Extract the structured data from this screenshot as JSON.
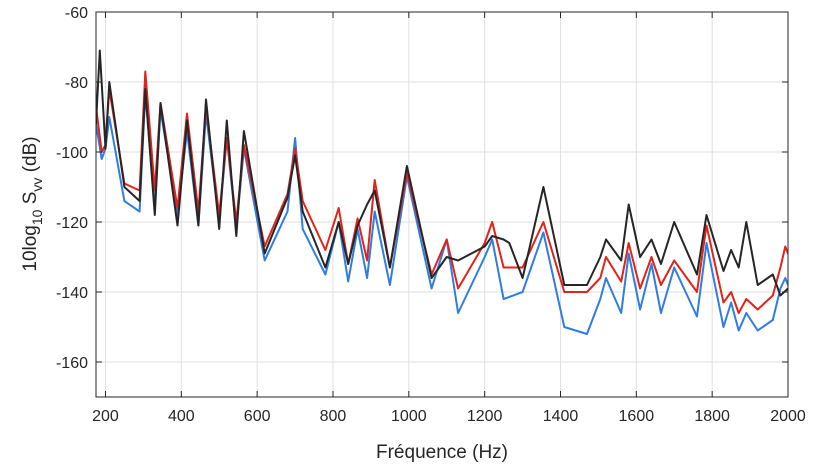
{
  "chart_data": {
    "type": "line",
    "xlabel": "Fréquence (Hz)",
    "ylabel_main": "10log",
    "ylabel_sub": "10",
    "ylabel_rest": " S",
    "ylabel_sub2": "vv",
    "ylabel_unit": " (dB)",
    "xlim": [
      175,
      2000
    ],
    "ylim": [
      -170,
      -60
    ],
    "xticks": [
      200,
      400,
      600,
      800,
      1000,
      1200,
      1400,
      1600,
      1800,
      2000
    ],
    "xtick_labels": [
      "200",
      "400",
      "600",
      "800",
      "1000",
      "1200",
      "1400",
      "1600",
      "1800",
      "2000"
    ],
    "yticks": [
      -160,
      -140,
      -120,
      -100,
      -80,
      -60
    ],
    "ytick_labels": [
      "-160",
      "-140",
      "-120",
      "-100",
      "-80",
      "-60"
    ],
    "grid": true,
    "series": [
      {
        "color": "#2f7de1",
        "x": [
          175,
          190,
          200,
          210,
          250,
          290,
          305,
          330,
          345,
          390,
          415,
          445,
          465,
          500,
          520,
          545,
          565,
          620,
          680,
          700,
          720,
          780,
          815,
          840,
          865,
          890,
          910,
          950,
          995,
          1060,
          1100,
          1130,
          1200,
          1220,
          1250,
          1300,
          1355,
          1410,
          1470,
          1505,
          1520,
          1560,
          1580,
          1610,
          1640,
          1665,
          1700,
          1760,
          1785,
          1830,
          1850,
          1870,
          1890,
          1920,
          1960,
          1980,
          1993,
          2000
        ],
        "y": [
          -92,
          -102,
          -99,
          -90,
          -114,
          -117,
          -83,
          -116,
          -88,
          -118,
          -94,
          -121,
          -89,
          -120,
          -96,
          -122,
          -99,
          -131,
          -117,
          -96,
          -122,
          -135,
          -120,
          -137,
          -122,
          -136,
          -117,
          -138,
          -107,
          -139,
          -125,
          -146,
          -130,
          -125,
          -142,
          -140,
          -123,
          -150,
          -152,
          -142,
          -136,
          -146,
          -129,
          -145,
          -132,
          -146,
          -133,
          -147,
          -126,
          -150,
          -143,
          -151,
          -146,
          -151,
          -148,
          -139,
          -136,
          -138
        ]
      },
      {
        "color": "#e2231a",
        "x": [
          175,
          190,
          200,
          210,
          250,
          290,
          305,
          330,
          345,
          390,
          415,
          445,
          465,
          500,
          520,
          545,
          565,
          620,
          680,
          700,
          720,
          780,
          815,
          840,
          865,
          890,
          910,
          950,
          995,
          1060,
          1100,
          1130,
          1200,
          1220,
          1250,
          1300,
          1355,
          1410,
          1470,
          1505,
          1520,
          1560,
          1580,
          1610,
          1640,
          1665,
          1700,
          1760,
          1785,
          1830,
          1850,
          1870,
          1890,
          1920,
          1960,
          1980,
          1993,
          2000
        ],
        "y": [
          -87,
          -100,
          -98,
          -82,
          -109,
          -111,
          -77,
          -111,
          -86,
          -116,
          -89,
          -117,
          -87,
          -118,
          -96,
          -120,
          -98,
          -127,
          -112,
          -99,
          -114,
          -128,
          -116,
          -132,
          -119,
          -131,
          -108,
          -133,
          -106,
          -135,
          -125,
          -139,
          -126,
          -120,
          -133,
          -133,
          -120,
          -140,
          -140,
          -136,
          -130,
          -137,
          -126,
          -139,
          -130,
          -138,
          -131,
          -140,
          -121,
          -143,
          -140,
          -146,
          -142,
          -145,
          -141,
          -133,
          -127,
          -129
        ]
      },
      {
        "color": "#262626",
        "x": [
          175,
          185,
          200,
          210,
          250,
          290,
          305,
          330,
          345,
          390,
          415,
          445,
          465,
          500,
          520,
          545,
          565,
          620,
          680,
          700,
          720,
          780,
          815,
          840,
          865,
          890,
          910,
          950,
          995,
          1060,
          1100,
          1130,
          1200,
          1220,
          1250,
          1265,
          1300,
          1355,
          1410,
          1470,
          1505,
          1520,
          1560,
          1580,
          1610,
          1640,
          1665,
          1700,
          1760,
          1785,
          1830,
          1850,
          1870,
          1890,
          1920,
          1960,
          1980,
          2000
        ],
        "y": [
          -92,
          -71,
          -99,
          -80,
          -110,
          -114,
          -82,
          -118,
          -86,
          -121,
          -91,
          -121,
          -85,
          -122,
          -91,
          -124,
          -94,
          -129,
          -113,
          -101,
          -117,
          -133,
          -120,
          -132,
          -121,
          -115,
          -111,
          -133,
          -104,
          -136,
          -130,
          -131,
          -127,
          -124,
          -125,
          -126,
          -136,
          -110,
          -138,
          -138,
          -130,
          -125,
          -131,
          -115,
          -130,
          -125,
          -132,
          -120,
          -135,
          -118,
          -134,
          -128,
          -133,
          -120,
          -138,
          -135,
          -141,
          -139
        ]
      }
    ]
  }
}
